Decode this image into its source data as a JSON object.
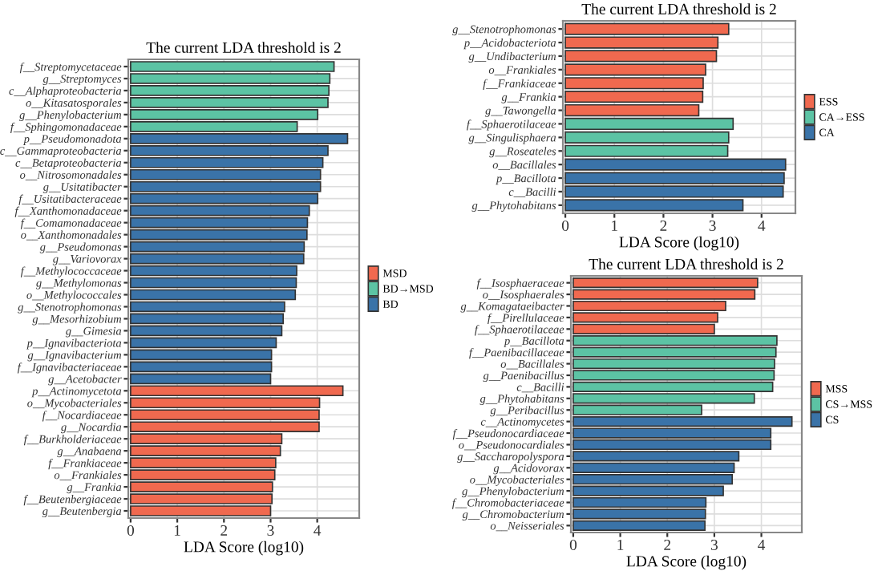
{
  "chart_data": [
    {
      "type": "bar",
      "orientation": "horizontal",
      "title": "The current LDA threshold is 2",
      "xlabel": "LDA Score (log10)",
      "legend": "right",
      "grid": true,
      "xlim": [
        -0.05,
        4.9
      ],
      "xticks": [
        0,
        1,
        2,
        3,
        4
      ],
      "categories": [
        "f__Streptomycetaceae",
        "g__Streptomyces",
        "c__Alphaproteobacteria",
        "o__Kitasatosporales",
        "g__Phenylobacterium",
        "f__Sphingomonadaceae",
        "p__Pseudomonadota",
        "c__Gammaproteobacteria",
        "c__Betaproteobacteria",
        "o__Nitrosomonadales",
        "g__Usitatibacter",
        "f__Usitatibacteraceae",
        "f__Xanthomonadaceae",
        "f__Comamonadaceae",
        "o__Xanthomonadales",
        "g__Pseudomonas",
        "g__Variovorax",
        "f__Methylococcaceae",
        "g__Methylomonas",
        "o__Methylococcales",
        "g__Stenotrophomonas",
        "g__Mesorhizobium",
        "g__Gimesia",
        "p__Ignavibacteriota",
        "g__Ignavibacterium",
        "f__Ignavibacteriaceae",
        "g__Acetobacter",
        "p__Actinomycetota",
        "o__Mycobacteriales",
        "f__Nocardiaceae",
        "g__Nocardia",
        "f__Burkholderiaceae",
        "g__Anabaena",
        "f__Frankiaceae",
        "o__Frankiales",
        "g__Frankia",
        "f__Beutenbergiaceae",
        "g__Beutenbergia"
      ],
      "series": [
        {
          "name": "MSD",
          "color": "#f0694f",
          "values": [
            null,
            null,
            null,
            null,
            null,
            null,
            null,
            null,
            null,
            null,
            null,
            null,
            null,
            null,
            null,
            null,
            null,
            null,
            null,
            null,
            null,
            null,
            null,
            null,
            null,
            null,
            null,
            4.55,
            4.05,
            4.04,
            4.04,
            3.24,
            3.21,
            3.11,
            3.09,
            3.04,
            3.03,
            3.0
          ]
        },
        {
          "name": "BD→MSD",
          "color": "#5cc3a4",
          "values": [
            4.36,
            4.27,
            4.25,
            4.23,
            4.01,
            3.57,
            null,
            null,
            null,
            null,
            null,
            null,
            null,
            null,
            null,
            null,
            null,
            null,
            null,
            null,
            null,
            null,
            null,
            null,
            null,
            null,
            null,
            null,
            null,
            null,
            null,
            null,
            null,
            null,
            null,
            null,
            null,
            null
          ]
        },
        {
          "name": "BD",
          "color": "#3a73a8",
          "values": [
            null,
            null,
            null,
            null,
            null,
            null,
            4.65,
            4.23,
            4.12,
            4.07,
            4.07,
            4.01,
            3.83,
            3.79,
            3.78,
            3.72,
            3.71,
            3.56,
            3.55,
            3.53,
            3.3,
            3.27,
            3.24,
            3.12,
            3.02,
            3.02,
            3.0,
            null,
            null,
            null,
            null,
            null,
            null,
            null,
            null,
            null,
            null,
            null
          ]
        }
      ]
    },
    {
      "type": "bar",
      "orientation": "horizontal",
      "title": "The current LDA threshold is 2",
      "xlabel": "LDA Score (log10)",
      "legend": "right",
      "grid": true,
      "xlim": [
        -0.05,
        4.69
      ],
      "xticks": [
        0,
        1,
        2,
        3,
        4
      ],
      "categories": [
        "g__Stenotrophomonas",
        "p__Acidobacteriota",
        "g__Undibacterium",
        "o__Frankiales",
        "f__Frankiaceae",
        "g__Frankia",
        "g__Tawongella",
        "f__Sphaerotilaceae",
        "g__Singulisphaera",
        "g__Roseateles",
        "o__Bacillales",
        "p__Bacillota",
        "c__Bacilli",
        "g__Phytohabitans"
      ],
      "series": [
        {
          "name": "ESS",
          "color": "#f0694f",
          "values": [
            3.33,
            3.11,
            3.08,
            2.86,
            2.81,
            2.8,
            2.72,
            null,
            null,
            null,
            null,
            null,
            null,
            null
          ]
        },
        {
          "name": "CA→ESS",
          "color": "#5cc3a4",
          "values": [
            null,
            null,
            null,
            null,
            null,
            null,
            null,
            3.42,
            3.33,
            3.31,
            null,
            null,
            null,
            null
          ]
        },
        {
          "name": "CA",
          "color": "#3a73a8",
          "values": [
            null,
            null,
            null,
            null,
            null,
            null,
            null,
            null,
            null,
            null,
            4.49,
            4.46,
            4.44,
            3.62
          ]
        }
      ]
    },
    {
      "type": "bar",
      "orientation": "horizontal",
      "title": "The current LDA threshold is 2",
      "xlabel": "LDA Score (log10)",
      "legend": "right",
      "grid": true,
      "xlim": [
        -0.05,
        4.86
      ],
      "xticks": [
        0,
        1,
        2,
        3,
        4
      ],
      "categories": [
        "f__Isosphaeraceae",
        "o__Isosphaerales",
        "g__Komagataeibacter",
        "f__Pirellulaceae",
        "f__Sphaerotilaceae",
        "p__Bacillota",
        "f__Paenibacillaceae",
        "o__Bacillales",
        "g__Paenibacillus",
        "c__Bacilli",
        "g__Phytohabitans",
        "g__Peribacillus",
        "c__Actinomycetes",
        "f__Pseudonocardiaceae",
        "o__Pseudonocardiales",
        "g__Saccharopolyspora",
        "g__Acidovorax",
        "o__Mycobacteriales",
        "g__Phenylobacterium",
        "f__Chromobacteriaceae",
        "g__Chromobacterium",
        "o__Neisseriales"
      ],
      "series": [
        {
          "name": "MSS",
          "color": "#f0694f",
          "values": [
            3.92,
            3.86,
            3.24,
            3.07,
            3.0,
            null,
            null,
            null,
            null,
            null,
            null,
            null,
            null,
            null,
            null,
            null,
            null,
            null,
            null,
            null,
            null,
            null
          ]
        },
        {
          "name": "CS→MSS",
          "color": "#5cc3a4",
          "values": [
            null,
            null,
            null,
            null,
            null,
            4.33,
            4.31,
            4.28,
            4.27,
            4.24,
            3.85,
            2.73,
            null,
            null,
            null,
            null,
            null,
            null,
            null,
            null,
            null,
            null
          ]
        },
        {
          "name": "CS",
          "color": "#3a73a8",
          "values": [
            null,
            null,
            null,
            null,
            null,
            null,
            null,
            null,
            null,
            null,
            null,
            null,
            4.65,
            4.2,
            4.2,
            3.52,
            3.42,
            3.38,
            3.19,
            2.82,
            2.81,
            2.8
          ]
        }
      ]
    }
  ]
}
